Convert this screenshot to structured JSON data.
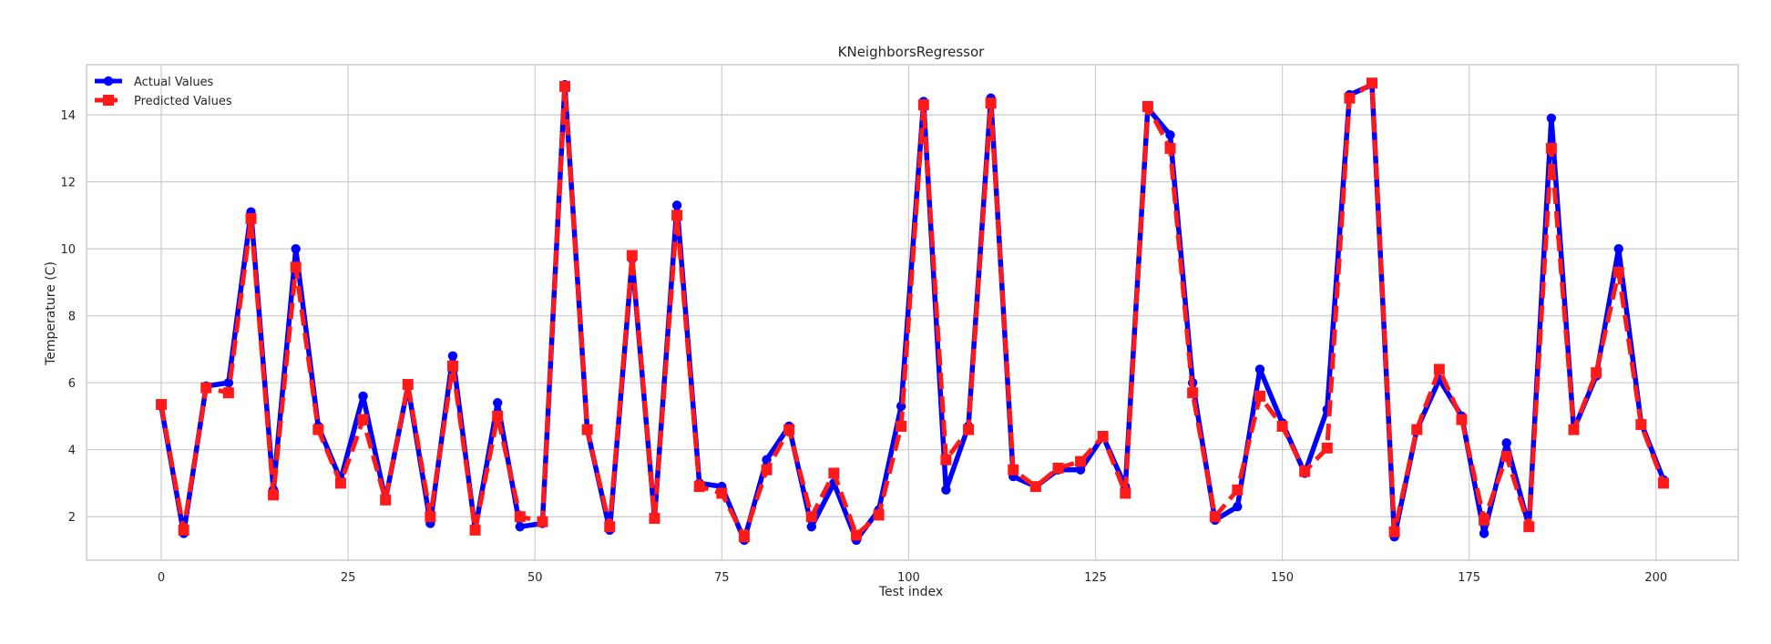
{
  "chart_data": {
    "type": "line",
    "title": "KNeighborsRegressor",
    "xlabel": "Test index",
    "ylabel": "Temperature (C)",
    "xlim": [
      -10,
      211
    ],
    "ylim": [
      0.7,
      15.5
    ],
    "xticks": [
      0,
      25,
      50,
      75,
      100,
      125,
      150,
      175,
      200
    ],
    "yticks": [
      2,
      4,
      6,
      8,
      10,
      12,
      14
    ],
    "grid": true,
    "legend_position": "upper-left",
    "series": [
      {
        "name": "Actual Values",
        "color": "#0000ff",
        "style": "solid",
        "marker": "circle",
        "x": [
          0,
          3,
          6,
          9,
          12,
          15,
          18,
          21,
          24,
          27,
          30,
          33,
          36,
          39,
          42,
          45,
          48,
          51,
          54,
          57,
          60,
          63,
          66,
          69,
          72,
          75,
          78,
          81,
          84,
          87,
          90,
          93,
          96,
          99,
          102,
          105,
          108,
          111,
          114,
          117,
          120,
          123,
          126,
          129,
          132,
          135,
          138,
          141,
          144,
          147,
          150,
          153,
          156,
          159,
          162,
          165,
          168,
          171,
          174,
          177,
          180,
          183,
          186,
          189,
          192,
          195,
          198,
          201
        ],
        "y": [
          5.3,
          1.5,
          5.9,
          6.0,
          11.1,
          2.8,
          10.0,
          4.7,
          3.1,
          5.6,
          2.5,
          5.9,
          1.8,
          6.8,
          1.6,
          5.4,
          1.7,
          1.8,
          14.9,
          4.6,
          1.6,
          9.7,
          1.95,
          11.3,
          3.0,
          2.9,
          1.3,
          3.7,
          4.7,
          1.7,
          3.0,
          1.3,
          2.2,
          5.3,
          14.4,
          2.8,
          4.7,
          14.5,
          3.2,
          2.9,
          3.4,
          3.4,
          4.4,
          2.9,
          14.2,
          13.4,
          6.0,
          1.9,
          2.3,
          6.4,
          4.8,
          3.3,
          5.2,
          14.6,
          14.9,
          1.4,
          4.6,
          6.1,
          5.0,
          1.5,
          4.2,
          1.7,
          13.9,
          4.6,
          6.2,
          10.0,
          4.8,
          3.1
        ]
      },
      {
        "name": "Predicted Values",
        "color": "#ff1a1a",
        "style": "dashed",
        "marker": "square",
        "x": [
          0,
          3,
          6,
          9,
          12,
          15,
          18,
          21,
          24,
          27,
          30,
          33,
          36,
          39,
          42,
          45,
          48,
          51,
          54,
          57,
          60,
          63,
          66,
          69,
          72,
          75,
          78,
          81,
          84,
          87,
          90,
          93,
          96,
          99,
          102,
          105,
          108,
          111,
          114,
          117,
          120,
          123,
          126,
          129,
          132,
          135,
          138,
          141,
          144,
          147,
          150,
          153,
          156,
          159,
          162,
          165,
          168,
          171,
          174,
          177,
          180,
          183,
          186,
          189,
          192,
          195,
          198,
          201
        ],
        "y": [
          5.35,
          1.6,
          5.85,
          5.7,
          10.9,
          2.65,
          9.45,
          4.6,
          3.0,
          4.9,
          2.5,
          5.95,
          2.0,
          6.5,
          1.6,
          5.0,
          2.0,
          1.85,
          14.85,
          4.6,
          1.7,
          9.8,
          1.95,
          11.0,
          2.9,
          2.7,
          1.4,
          3.4,
          4.6,
          2.0,
          3.3,
          1.45,
          2.05,
          4.7,
          14.3,
          3.7,
          4.6,
          14.35,
          3.4,
          2.9,
          3.45,
          3.65,
          4.4,
          2.7,
          14.25,
          13.0,
          5.7,
          2.0,
          2.8,
          5.6,
          4.7,
          3.35,
          4.05,
          14.5,
          14.95,
          1.55,
          4.6,
          6.4,
          4.9,
          1.9,
          3.8,
          1.7,
          13.0,
          4.6,
          6.3,
          9.3,
          4.75,
          3.0
        ]
      }
    ]
  }
}
